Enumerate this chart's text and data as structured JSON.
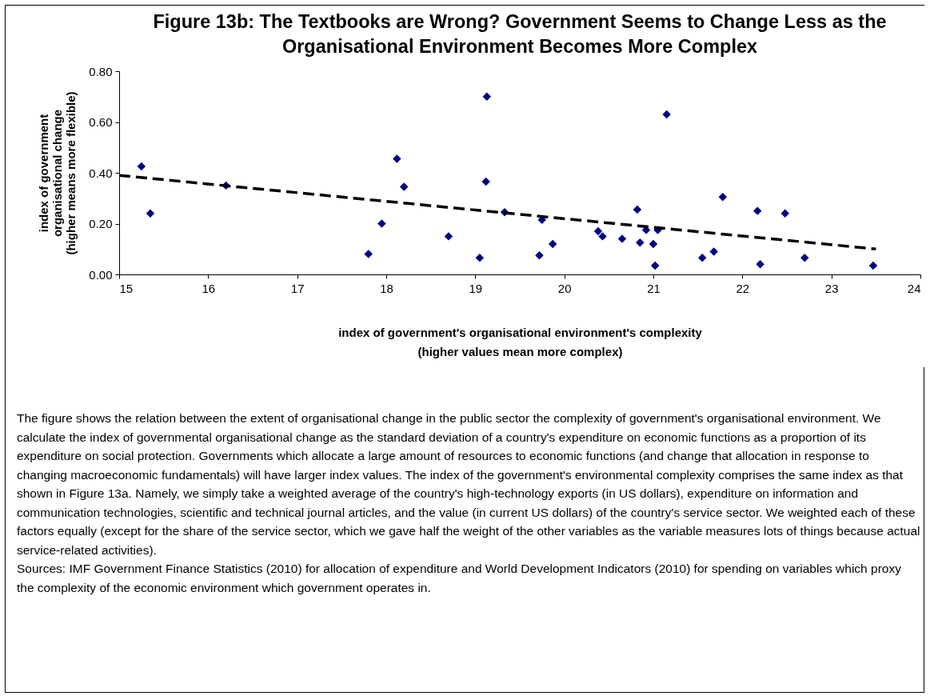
{
  "chart_data": {
    "type": "scatter",
    "title": "Figure 13b: The Textbooks are Wrong? Government Seems to Change Less as the Organisational Environment Becomes More Complex",
    "xlabel": "index of government's organisational environment's complexity\n(higher values mean more complex)",
    "ylabel": "index of government\norganisational change\n(higher means more flexible)",
    "series": [
      {
        "color": "#000080",
        "marker": "diamond",
        "x": [
          15.25,
          15.35,
          16.2,
          17.8,
          17.95,
          18.12,
          18.2,
          18.7,
          19.05,
          19.13,
          19.12,
          19.33,
          19.72,
          19.75,
          19.87,
          20.38,
          20.43,
          20.65,
          20.82,
          20.85,
          20.92,
          21.0,
          21.02,
          21.05,
          21.15,
          21.55,
          21.68,
          21.78,
          22.17,
          22.2,
          22.48,
          22.7,
          23.47
        ],
        "values": [
          0.425,
          0.24,
          0.35,
          0.08,
          0.2,
          0.455,
          0.345,
          0.15,
          0.065,
          0.7,
          0.365,
          0.245,
          0.075,
          0.215,
          0.12,
          0.17,
          0.15,
          0.14,
          0.255,
          0.125,
          0.175,
          0.12,
          0.035,
          0.175,
          0.63,
          0.065,
          0.09,
          0.305,
          0.25,
          0.04,
          0.24,
          0.065,
          0.035
        ]
      },
      {
        "type": "line",
        "color": "#000000",
        "line_style": "dashed",
        "marker": "none",
        "x": [
          15,
          23.5
        ],
        "values": [
          0.39,
          0.1
        ]
      }
    ],
    "xlim": [
      15,
      24
    ],
    "xticks": [
      15,
      16,
      17,
      18,
      19,
      20,
      21,
      22,
      23,
      24
    ],
    "ylim": [
      0,
      0.8
    ],
    "yticks": [
      {
        "value": 0,
        "label": "0.00"
      },
      {
        "value": 0.2,
        "label": "0.20"
      },
      {
        "value": 0.4,
        "label": "0.40"
      },
      {
        "value": 0.6,
        "label": "0.60"
      },
      {
        "value": 0.8,
        "label": "0.80"
      }
    ],
    "grid": false,
    "annotations": [
      "The figure shows the relation between the extent of organisational change in the public sector the complexity of government's organisational environment. We calculate the index of governmental organisational change as the standard deviation of a country's expenditure on economic functions as a proportion of its expenditure on social protection. Governments which allocate a large amount of resources to economic functions (and change that allocation in response to changing macroeconomic fundamentals) will have larger index values. The index of the government's environmental complexity comprises the same index as that shown in Figure 13a. Namely, we simply take a weighted average of the country's high-technology exports (in US dollars), expenditure on information and communication technologies, scientific and technical journal articles, and the value (in current US dollars) of the country's service sector. We weighted each of these factors equally (except for the share of the service sector, which we gave half the weight of the other variables as the variable measures lots of things because actual service-related activities).",
      "Sources: IMF Government Finance Statistics (2010) for allocation of expenditure and World Development Indicators (2010) for spending on variables which proxy the complexity of the economic environment which government operates in."
    ]
  }
}
